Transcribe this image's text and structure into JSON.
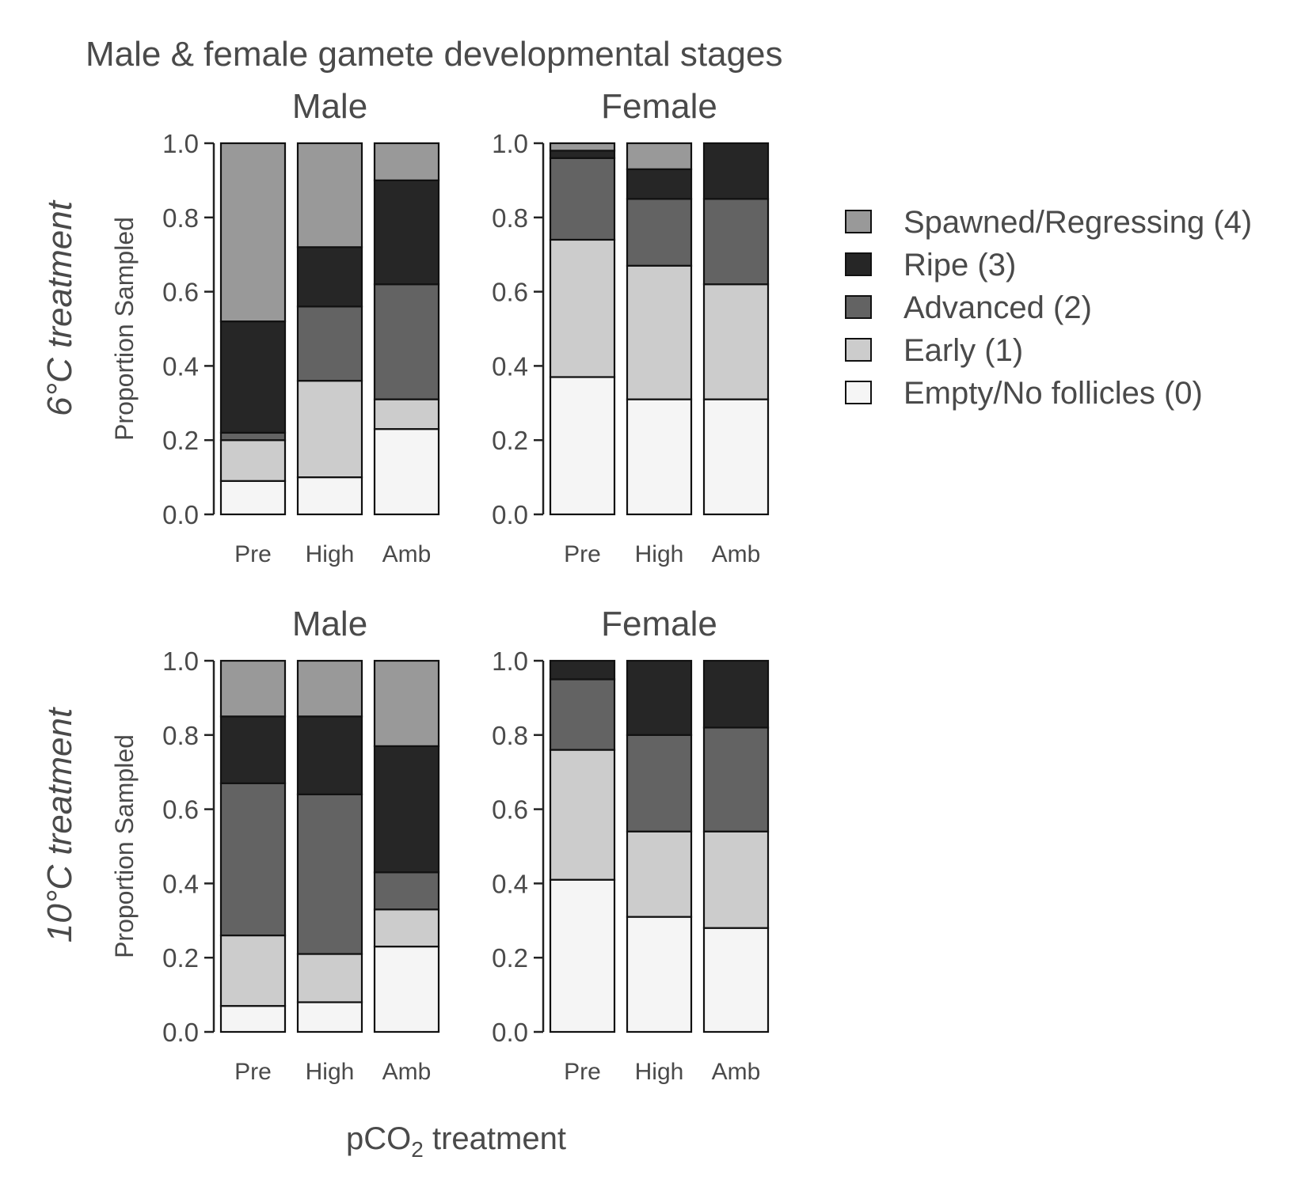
{
  "title": "Male & female gamete developmental stages",
  "x_axis_label": {
    "prefix": "pCO",
    "subscript": "2",
    "suffix": " treatment"
  },
  "y_axis_label": "Proportion Sampled",
  "row_labels": [
    "6°C treatment",
    "10°C treatment"
  ],
  "y_tick_labels": [
    "0.0",
    "0.2",
    "0.4",
    "0.6",
    "0.8",
    "1.0"
  ],
  "legend": [
    {
      "label": "Spawned/Regressing (4)",
      "color": "#999999"
    },
    {
      "label": "Ripe (3)",
      "color": "#262626"
    },
    {
      "label": "Advanced (2)",
      "color": "#636363"
    },
    {
      "label": "Early (1)",
      "color": "#cccccc"
    },
    {
      "label": "Empty/No follicles (0)",
      "color": "#f5f5f5"
    }
  ],
  "chart_data": [
    {
      "type": "bar",
      "stacked": true,
      "panel": "Male",
      "row": "6°C treatment",
      "categories": [
        "Pre",
        "High",
        "Amb"
      ],
      "ylim": [
        0,
        1
      ],
      "series": [
        {
          "name": "Empty/No follicles (0)",
          "values": [
            0.09,
            0.1,
            0.23
          ]
        },
        {
          "name": "Early (1)",
          "values": [
            0.11,
            0.26,
            0.08
          ]
        },
        {
          "name": "Advanced (2)",
          "values": [
            0.02,
            0.2,
            0.31
          ]
        },
        {
          "name": "Ripe (3)",
          "values": [
            0.3,
            0.16,
            0.28
          ]
        },
        {
          "name": "Spawned/Regressing (4)",
          "values": [
            0.48,
            0.28,
            0.1
          ]
        }
      ]
    },
    {
      "type": "bar",
      "stacked": true,
      "panel": "Female",
      "row": "6°C treatment",
      "categories": [
        "Pre",
        "High",
        "Amb"
      ],
      "ylim": [
        0,
        1
      ],
      "series": [
        {
          "name": "Empty/No follicles (0)",
          "values": [
            0.37,
            0.31,
            0.31
          ]
        },
        {
          "name": "Early (1)",
          "values": [
            0.37,
            0.36,
            0.31
          ]
        },
        {
          "name": "Advanced (2)",
          "values": [
            0.22,
            0.18,
            0.23
          ]
        },
        {
          "name": "Ripe (3)",
          "values": [
            0.02,
            0.08,
            0.15
          ]
        },
        {
          "name": "Spawned/Regressing (4)",
          "values": [
            0.02,
            0.07,
            0.0
          ]
        }
      ]
    },
    {
      "type": "bar",
      "stacked": true,
      "panel": "Male",
      "row": "10°C treatment",
      "categories": [
        "Pre",
        "High",
        "Amb"
      ],
      "ylim": [
        0,
        1
      ],
      "series": [
        {
          "name": "Empty/No follicles (0)",
          "values": [
            0.07,
            0.08,
            0.23
          ]
        },
        {
          "name": "Early (1)",
          "values": [
            0.19,
            0.13,
            0.1
          ]
        },
        {
          "name": "Advanced (2)",
          "values": [
            0.41,
            0.43,
            0.1
          ]
        },
        {
          "name": "Ripe (3)",
          "values": [
            0.18,
            0.21,
            0.34
          ]
        },
        {
          "name": "Spawned/Regressing (4)",
          "values": [
            0.15,
            0.15,
            0.23
          ]
        }
      ]
    },
    {
      "type": "bar",
      "stacked": true,
      "panel": "Female",
      "row": "10°C treatment",
      "categories": [
        "Pre",
        "High",
        "Amb"
      ],
      "ylim": [
        0,
        1
      ],
      "series": [
        {
          "name": "Empty/No follicles (0)",
          "values": [
            0.41,
            0.31,
            0.28
          ]
        },
        {
          "name": "Early (1)",
          "values": [
            0.35,
            0.23,
            0.26
          ]
        },
        {
          "name": "Advanced (2)",
          "values": [
            0.19,
            0.26,
            0.28
          ]
        },
        {
          "name": "Ripe (3)",
          "values": [
            0.05,
            0.2,
            0.18
          ]
        },
        {
          "name": "Spawned/Regressing (4)",
          "values": [
            0.0,
            0.0,
            0.0
          ]
        }
      ]
    }
  ]
}
